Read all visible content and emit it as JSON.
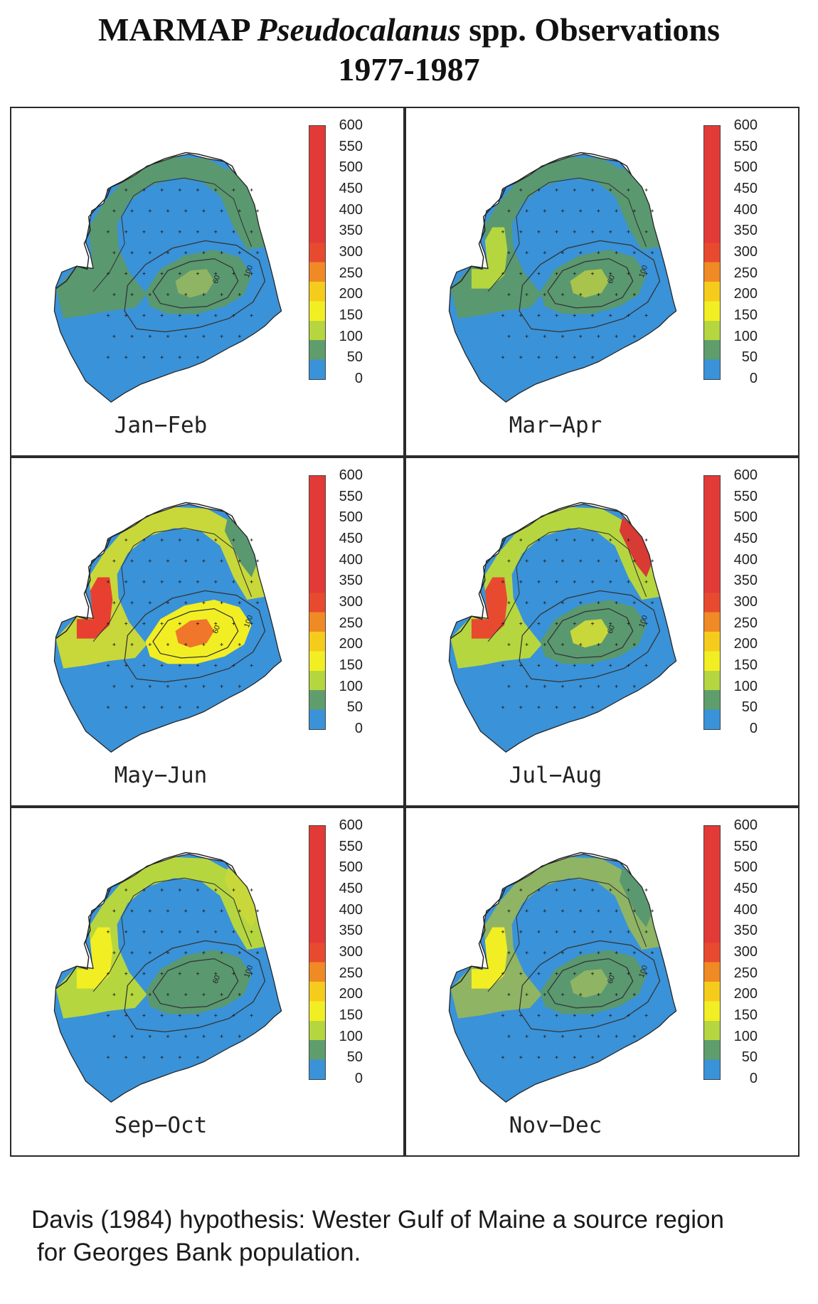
{
  "title": {
    "prefix": "MARMAP ",
    "italic": "Pseudocalanus",
    "suffix": " spp. Observations",
    "line2": "1977-1987"
  },
  "colorbar": {
    "ticks": [
      "600",
      "550",
      "500",
      "450",
      "400",
      "350",
      "300",
      "250",
      "200",
      "150",
      "100",
      "50",
      "0"
    ],
    "colors": [
      "#e23a36",
      "#e23a36",
      "#e23a36",
      "#e23a36",
      "#e23a36",
      "#e23a36",
      "#e84a30",
      "#f08a24",
      "#f6cc1c",
      "#f2ee24",
      "#b6d640",
      "#5f9e6c",
      "#3a92d8"
    ]
  },
  "contours": [
    "60",
    "100"
  ],
  "panels": [
    {
      "label": "Jan−Feb",
      "shelf": "#5a9870",
      "bank": "#5a9870",
      "core": "#8fb464",
      "nw": "#5a9870",
      "ne": "#5a9870"
    },
    {
      "label": "Mar−Apr",
      "shelf": "#5a9870",
      "bank": "#5a9870",
      "core": "#a8c44c",
      "nw": "#b6d640",
      "ne": "#5a9870"
    },
    {
      "label": "May−Jun",
      "shelf": "#c8d83a",
      "bank": "#f2ee24",
      "core": "#f0762a",
      "nw": "#e84030",
      "ne": "#5a9870"
    },
    {
      "label": "Jul−Aug",
      "shelf": "#b6d640",
      "bank": "#5a9870",
      "core": "#c8d83a",
      "nw": "#e84a30",
      "ne": "#d83a34"
    },
    {
      "label": "Sep−Oct",
      "shelf": "#b6d640",
      "bank": "#5a9870",
      "core": "#5a9870",
      "nw": "#f2ee24",
      "ne": "#c8d83a"
    },
    {
      "label": "Nov−Dec",
      "shelf": "#8fb464",
      "bank": "#5a9870",
      "core": "#8fb464",
      "nw": "#f2ee24",
      "ne": "#5a9870"
    }
  ],
  "caption": {
    "line1": "Davis (1984) hypothesis: Wester Gulf of Maine a source region",
    "line2": "for Georges Bank population."
  }
}
